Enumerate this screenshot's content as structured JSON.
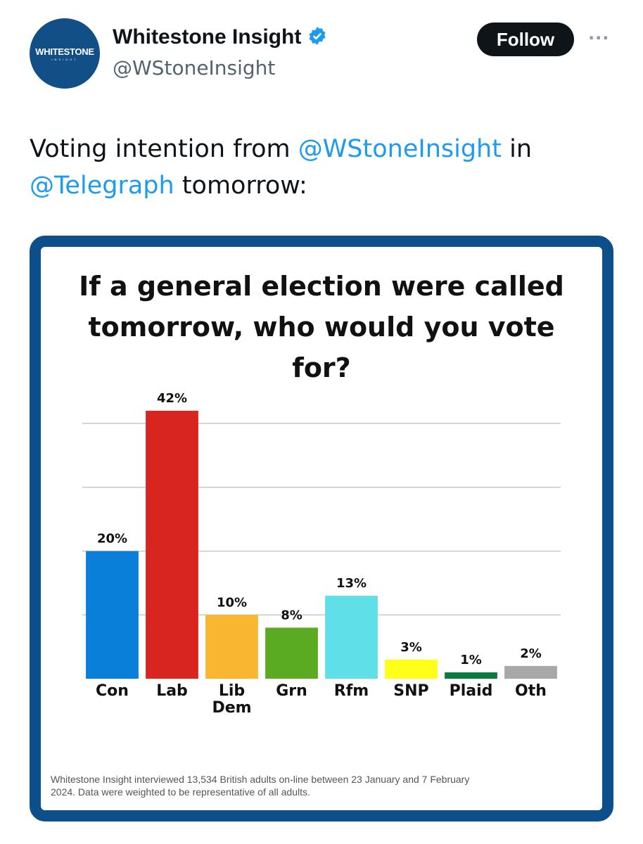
{
  "tweet": {
    "logo": {
      "text": "WHITESTONE",
      "sub": "INSIGHT"
    },
    "name": "Whitestone Insight",
    "handle": "@WStoneInsight",
    "follow": "Follow",
    "text": [
      "Voting intention from ",
      "@WStoneInsight",
      " in ",
      "@Telegraph",
      " tomorrow:"
    ]
  },
  "chart_data": {
    "type": "bar",
    "title": "If a general election were called tomorrow, who would you vote for?",
    "categories": [
      "Con",
      "Lab",
      "Lib Dem",
      "Grn",
      "Rfm",
      "SNP",
      "Plaid",
      "Oth"
    ],
    "values": [
      20,
      42,
      10,
      8,
      13,
      3,
      1,
      2
    ],
    "value_labels": [
      "20%",
      "42%",
      "10%",
      "8%",
      "13%",
      "3%",
      "1%",
      "2%"
    ],
    "colors": [
      "#0a7fd9",
      "#d9251f",
      "#f9b631",
      "#5aaa22",
      "#5fe0e8",
      "#ffff1a",
      "#0c7a3e",
      "#a8a8a8"
    ],
    "ylim": [
      0,
      42
    ],
    "yticks": [
      10,
      20,
      30,
      40
    ],
    "grid": true,
    "note": "Whitestone Insight interviewed  13,534 British adults on-line between 23 January and 7 February 2024. Data were weighted to be representative of all adults."
  }
}
